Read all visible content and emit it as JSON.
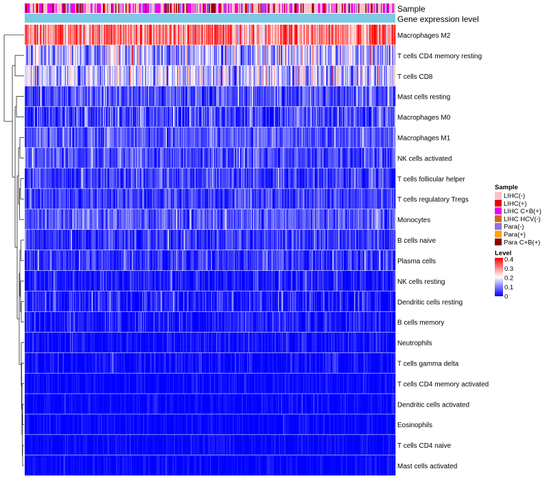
{
  "chart_data": {
    "type": "heatmap",
    "title": "",
    "annotation_tracks": [
      {
        "id": "sample",
        "label": "Sample"
      },
      {
        "id": "gene_level",
        "label": "Gene expression level"
      }
    ],
    "rows": [
      {
        "label": "Macrophages M2",
        "mean": 0.3,
        "spread": 0.1
      },
      {
        "label": "T cells CD4 memory resting",
        "mean": 0.14,
        "spread": 0.09
      },
      {
        "label": "T cells CD8",
        "mean": 0.15,
        "spread": 0.1
      },
      {
        "label": "Mast cells resting",
        "mean": 0.06,
        "spread": 0.06
      },
      {
        "label": "Macrophages M0",
        "mean": 0.05,
        "spread": 0.07
      },
      {
        "label": "Macrophages M1",
        "mean": 0.07,
        "spread": 0.05
      },
      {
        "label": "NK cells activated",
        "mean": 0.06,
        "spread": 0.05
      },
      {
        "label": "T cells follicular helper",
        "mean": 0.05,
        "spread": 0.05
      },
      {
        "label": "T cells regulatory  Tregs",
        "mean": 0.05,
        "spread": 0.05
      },
      {
        "label": "Monocytes",
        "mean": 0.07,
        "spread": 0.05
      },
      {
        "label": "B cells naive",
        "mean": 0.04,
        "spread": 0.05
      },
      {
        "label": "Plasma cells",
        "mean": 0.04,
        "spread": 0.05
      },
      {
        "label": "NK cells resting",
        "mean": 0.02,
        "spread": 0.04
      },
      {
        "label": "Dendritic cells resting",
        "mean": 0.02,
        "spread": 0.05
      },
      {
        "label": "B cells memory",
        "mean": 0.02,
        "spread": 0.04
      },
      {
        "label": "Neutrophils",
        "mean": 0.01,
        "spread": 0.03
      },
      {
        "label": "T cells gamma delta",
        "mean": 0.005,
        "spread": 0.03
      },
      {
        "label": "T cells CD4 memory activated",
        "mean": 0.004,
        "spread": 0.02
      },
      {
        "label": "Dendritic cells activated",
        "mean": 0.004,
        "spread": 0.02
      },
      {
        "label": "Eosinophils",
        "mean": 0.003,
        "spread": 0.02
      },
      {
        "label": "T cells CD4 naive",
        "mean": 0.003,
        "spread": 0.02
      },
      {
        "label": "Mast cells activated",
        "mean": 0.003,
        "spread": 0.02
      }
    ],
    "n_samples": 360,
    "sample_group_weights": [
      0.45,
      0.05,
      0.25,
      0.0,
      0.12,
      0.0,
      0.13
    ],
    "sample_legend": {
      "title": "Sample",
      "entries": [
        {
          "label": "LIHC(-)",
          "color": "#ffc0cb"
        },
        {
          "label": "LIHC(+)",
          "color": "#ee0000"
        },
        {
          "label": "LIHC C+B(+)",
          "color": "#ee00ee"
        },
        {
          "label": "LIHC HCV(-)",
          "color": "#d2691e"
        },
        {
          "label": "Para(-)",
          "color": "#9370db"
        },
        {
          "label": "Para(+)",
          "color": "#ffa500"
        },
        {
          "label": "Para C+B(+)",
          "color": "#8b0000"
        }
      ]
    },
    "gene_level_color": "#7ec8e3",
    "level_legend": {
      "title": "Level",
      "min": 0,
      "max": 0.4,
      "ticks": [
        "0.4",
        "0.3",
        "0.2",
        "0.1",
        "0"
      ],
      "colors": [
        "#0000ff",
        "#ffffff",
        "#ff0000"
      ]
    }
  }
}
